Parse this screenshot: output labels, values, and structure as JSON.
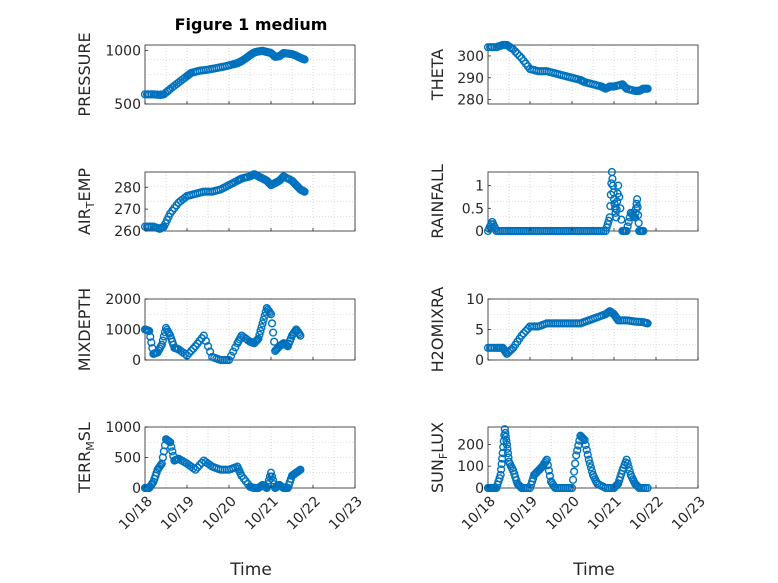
{
  "title": "Figure 1 medium",
  "chart_data": [
    {
      "type": "scatter",
      "ylabel": "PRESSURE",
      "ylim": [
        500,
        1050
      ],
      "yticks": [
        500,
        1000
      ],
      "ytick_labels": [
        "500",
        "1000"
      ],
      "series": [
        {
          "x": [
            0,
            0.2,
            0.35,
            0.45,
            0.6,
            0.8,
            1.0,
            1.1,
            1.3,
            1.5,
            1.7,
            1.9,
            2.1,
            2.2,
            2.3,
            2.4,
            2.5,
            2.6,
            2.7,
            2.8,
            2.9,
            3.0,
            3.1,
            3.2,
            3.3,
            3.4,
            3.5,
            3.6,
            3.7,
            3.8
          ],
          "y": [
            590,
            590,
            585,
            590,
            640,
            700,
            760,
            790,
            810,
            820,
            835,
            850,
            870,
            880,
            900,
            925,
            955,
            980,
            990,
            995,
            985,
            975,
            940,
            945,
            975,
            970,
            965,
            950,
            930,
            915
          ]
        }
      ]
    },
    {
      "type": "scatter",
      "ylabel": "THETA",
      "ylim": [
        278,
        305
      ],
      "yticks": [
        280,
        290,
        300
      ],
      "ytick_labels": [
        "280",
        "290",
        "300"
      ],
      "series": [
        {
          "x": [
            0,
            0.2,
            0.35,
            0.45,
            0.6,
            0.8,
            1.0,
            1.2,
            1.4,
            1.6,
            1.8,
            2.0,
            2.2,
            2.3,
            2.5,
            2.7,
            2.8,
            2.9,
            3.0,
            3.2,
            3.3,
            3.5,
            3.6,
            3.7,
            3.8
          ],
          "y": [
            304,
            304,
            305,
            305,
            303,
            299,
            294,
            293,
            293,
            292,
            291,
            290,
            289,
            288,
            287,
            286,
            285,
            286,
            286,
            287,
            285,
            284,
            284,
            285,
            285
          ]
        }
      ]
    },
    {
      "type": "scatter",
      "ylabel": "AIR_TEMP",
      "ylim": [
        260,
        287
      ],
      "yticks": [
        260,
        270,
        280
      ],
      "ytick_labels": [
        "260",
        "270",
        "280"
      ],
      "series": [
        {
          "x": [
            0,
            0.2,
            0.35,
            0.45,
            0.6,
            0.8,
            1.0,
            1.2,
            1.4,
            1.6,
            1.8,
            2.0,
            2.2,
            2.3,
            2.5,
            2.6,
            2.7,
            2.8,
            2.9,
            3.0,
            3.1,
            3.2,
            3.3,
            3.5,
            3.6,
            3.7,
            3.8
          ],
          "y": [
            262,
            262,
            261,
            262,
            268,
            273,
            276,
            277,
            278,
            278,
            279,
            281,
            283,
            284,
            285,
            286,
            285,
            284,
            283,
            281,
            282,
            283,
            285,
            283,
            281,
            279,
            278
          ]
        }
      ]
    },
    {
      "type": "scatter",
      "ylabel": "RAINFALL",
      "ylim": [
        0,
        1.3
      ],
      "yticks": [
        0,
        0.5,
        1
      ],
      "ytick_labels": [
        "0",
        "0.5",
        "1"
      ],
      "series": [
        {
          "x": [
            0,
            0.1,
            0.2,
            0.4,
            0.6,
            0.8,
            1.0,
            1.2,
            1.4,
            1.6,
            1.8,
            2.0,
            2.2,
            2.4,
            2.6,
            2.8,
            2.9,
            2.95,
            3.0,
            3.05,
            3.1,
            3.2,
            3.3,
            3.4,
            3.5,
            3.55,
            3.6,
            3.7
          ],
          "y": [
            0,
            0.2,
            0,
            0,
            0,
            0,
            0,
            0,
            0,
            0,
            0,
            0,
            0,
            0,
            0,
            0,
            0.3,
            1.3,
            0.7,
            0.3,
            1.0,
            0,
            0,
            0.4,
            0.3,
            0.7,
            0,
            0
          ]
        }
      ]
    },
    {
      "type": "scatter",
      "ylabel": "MIXDEPTH",
      "ylim": [
        0,
        2000
      ],
      "yticks": [
        0,
        1000,
        2000
      ],
      "ytick_labels": [
        "0",
        "1000",
        "2000"
      ],
      "series": [
        {
          "x": [
            0,
            0.1,
            0.2,
            0.3,
            0.4,
            0.5,
            0.6,
            0.7,
            0.8,
            1.0,
            1.2,
            1.4,
            1.6,
            1.8,
            2.0,
            2.2,
            2.3,
            2.5,
            2.6,
            2.7,
            2.8,
            2.9,
            3.0,
            3.1,
            3.2,
            3.3,
            3.4,
            3.5,
            3.6,
            3.7
          ],
          "y": [
            1000,
            950,
            200,
            250,
            500,
            1050,
            800,
            400,
            350,
            150,
            450,
            800,
            100,
            0,
            0,
            550,
            800,
            600,
            550,
            700,
            1200,
            1700,
            1500,
            300,
            450,
            550,
            450,
            800,
            1000,
            800
          ]
        }
      ]
    },
    {
      "type": "scatter",
      "ylabel": "H2OMIXRA",
      "ylim": [
        0,
        10
      ],
      "yticks": [
        0,
        5,
        10
      ],
      "ytick_labels": [
        "0",
        "5",
        "10"
      ],
      "series": [
        {
          "x": [
            0,
            0.2,
            0.35,
            0.45,
            0.6,
            0.8,
            1.0,
            1.2,
            1.4,
            1.6,
            1.8,
            2.0,
            2.2,
            2.4,
            2.6,
            2.8,
            2.9,
            3.0,
            3.1,
            3.3,
            3.5,
            3.7,
            3.8
          ],
          "y": [
            2,
            2,
            2,
            1,
            2,
            4,
            5.5,
            5.5,
            6,
            6,
            6,
            6,
            6,
            6.5,
            7,
            7.5,
            8,
            7.5,
            6.5,
            6.5,
            6.3,
            6.2,
            6
          ]
        }
      ]
    },
    {
      "type": "scatter",
      "ylabel": "TERR_MSL",
      "ylim": [
        0,
        1000
      ],
      "yticks": [
        0,
        500,
        1000
      ],
      "ytick_labels": [
        "0",
        "500",
        "1000"
      ],
      "series": [
        {
          "x": [
            0,
            0.1,
            0.2,
            0.3,
            0.4,
            0.5,
            0.6,
            0.7,
            0.8,
            1.0,
            1.2,
            1.4,
            1.6,
            1.8,
            2.0,
            2.2,
            2.3,
            2.5,
            2.6,
            2.7,
            2.8,
            2.9,
            3.0,
            3.1,
            3.2,
            3.3,
            3.4,
            3.5,
            3.6,
            3.7
          ],
          "y": [
            0,
            0,
            100,
            300,
            400,
            800,
            750,
            450,
            480,
            400,
            300,
            450,
            350,
            300,
            300,
            350,
            200,
            20,
            0,
            0,
            50,
            0,
            250,
            0,
            50,
            0,
            0,
            200,
            250,
            300
          ]
        }
      ]
    },
    {
      "type": "scatter",
      "ylabel": "SUN_FLUX",
      "ylim": [
        0,
        280
      ],
      "yticks": [
        0,
        100,
        200
      ],
      "ytick_labels": [
        "0",
        "100",
        "200"
      ],
      "series": [
        {
          "x": [
            0,
            0.1,
            0.2,
            0.3,
            0.35,
            0.4,
            0.45,
            0.5,
            0.6,
            0.7,
            0.8,
            1.0,
            1.1,
            1.2,
            1.3,
            1.4,
            1.5,
            1.6,
            1.8,
            2.0,
            2.1,
            2.2,
            2.3,
            2.4,
            2.5,
            2.6,
            2.8,
            3.0,
            3.1,
            3.2,
            3.3,
            3.4,
            3.5,
            3.6,
            3.8
          ],
          "y": [
            0,
            0,
            0,
            60,
            160,
            270,
            200,
            120,
            80,
            20,
            0,
            0,
            60,
            80,
            100,
            130,
            30,
            0,
            0,
            0,
            150,
            240,
            220,
            130,
            60,
            20,
            0,
            0,
            20,
            80,
            130,
            60,
            20,
            0,
            0
          ]
        }
      ]
    }
  ],
  "x_ticks": [
    "10/18",
    "10/19",
    "10/20",
    "10/21",
    "10/22",
    "10/23"
  ],
  "x_label": "Time",
  "colors": {
    "marker": "#0072BD",
    "axis": "#262626",
    "grid": "#bfbfbf"
  }
}
